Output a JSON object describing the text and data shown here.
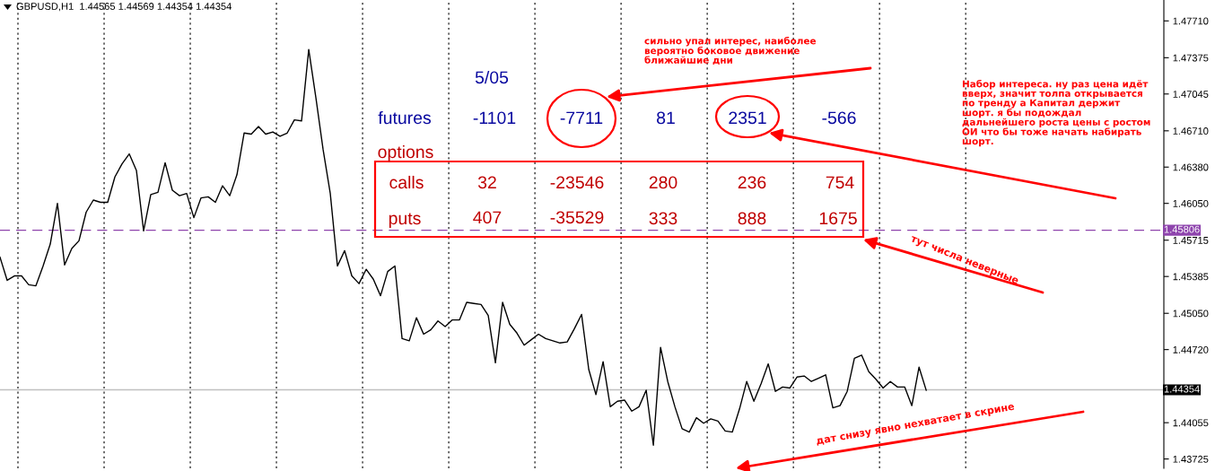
{
  "chart_data": {
    "type": "line",
    "categories": [
      null,
      null,
      null,
      null,
      null,
      null,
      null,
      null,
      null,
      null,
      null,
      null,
      null,
      null,
      null,
      null,
      null,
      null,
      null,
      null,
      null,
      null,
      null,
      null,
      null,
      null,
      null,
      null,
      null,
      null,
      null,
      null,
      null,
      null,
      null,
      null,
      null,
      null,
      null,
      null,
      null,
      null,
      null,
      null,
      null,
      null,
      null,
      null,
      null,
      null,
      null,
      null,
      null,
      null,
      null,
      null,
      null,
      null,
      null,
      null,
      null,
      null,
      null,
      null,
      null,
      null,
      null,
      null,
      null,
      null,
      null,
      null,
      null,
      null,
      null,
      null,
      null,
      null,
      null,
      null,
      null,
      null,
      null,
      null,
      null,
      null,
      null,
      null,
      null,
      null,
      null,
      null,
      null,
      null,
      null,
      null,
      null,
      null,
      null,
      null,
      null,
      null,
      null,
      null,
      null,
      null,
      null,
      null,
      null,
      null,
      null,
      null,
      null,
      null,
      null,
      null,
      null,
      null,
      null,
      null,
      null,
      null,
      null,
      null,
      null,
      null,
      null,
      null,
      null,
      null,
      null,
      null,
      null,
      null,
      null,
      null,
      null,
      null,
      null,
      null,
      null,
      null,
      null,
      null,
      null,
      null,
      null,
      null,
      null,
      null,
      null,
      null,
      null,
      null,
      null,
      null,
      null,
      null,
      null,
      null,
      null,
      null,
      null
    ],
    "series": [
      {
        "color": "#000000",
        "values": [
          1.4556,
          1.4535,
          1.4539,
          1.4539,
          1.4531,
          1.453,
          1.4548,
          1.4568,
          1.4605,
          1.4549,
          1.4564,
          1.4571,
          1.4597,
          1.4608,
          1.4606,
          1.4606,
          1.4629,
          1.4641,
          1.465,
          1.4635,
          1.458,
          1.4613,
          1.4615,
          1.4642,
          1.4617,
          1.4612,
          1.4614,
          1.4592,
          1.461,
          1.4611,
          1.4606,
          1.4621,
          1.4612,
          1.4631,
          1.4669,
          1.4668,
          1.4675,
          1.4668,
          1.467,
          1.4666,
          1.4669,
          1.4681,
          1.468,
          1.4745,
          1.4701,
          1.4654,
          1.4614,
          1.4548,
          1.4562,
          1.4539,
          1.4532,
          1.4545,
          1.4536,
          1.4521,
          1.4543,
          1.4548,
          1.4482,
          1.448,
          1.4501,
          1.4486,
          1.449,
          1.4498,
          1.4493,
          1.4499,
          1.4499,
          1.4515,
          1.4514,
          1.4513,
          1.4503,
          1.446,
          1.4515,
          1.4495,
          1.4487,
          1.4476,
          1.4481,
          1.4486,
          1.4482,
          1.448,
          1.4478,
          1.4479,
          1.4491,
          1.4504,
          1.4454,
          1.4431,
          1.4461,
          1.442,
          1.4425,
          1.4426,
          1.4416,
          1.442,
          1.4435,
          1.4385,
          1.4474,
          1.4443,
          1.442,
          1.44,
          1.4397,
          1.441,
          1.4405,
          1.4409,
          1.4407,
          1.4398,
          1.4397,
          1.4418,
          1.4443,
          1.4425,
          1.4441,
          1.4459,
          1.4434,
          1.4438,
          1.4437,
          1.4447,
          1.4448,
          1.4443,
          1.4446,
          1.4449,
          1.4419,
          1.4421,
          1.4434,
          1.4464,
          1.4467,
          1.4452,
          1.4445,
          1.4437,
          1.4443,
          1.4438,
          1.4438,
          1.4421,
          1.4456,
          1.4435,
          null,
          null,
          null,
          null,
          null,
          null,
          null,
          null,
          null,
          null,
          null,
          null,
          null,
          null,
          null,
          null,
          null,
          null,
          null,
          null,
          null,
          null,
          null,
          null,
          null,
          null,
          null,
          null,
          null,
          null,
          null,
          null,
          null
        ]
      }
    ],
    "ylim": [
      1.4364,
      1.479
    ],
    "yticks": [
      {
        "value": 1.4771,
        "label": "1.47710"
      },
      {
        "value": 1.47375,
        "label": "1.47375"
      },
      {
        "value": 1.47045,
        "label": "1.47045"
      },
      {
        "value": 1.4671,
        "label": "1.46710"
      },
      {
        "value": 1.4638,
        "label": "1.46380"
      },
      {
        "value": 1.4605,
        "label": "1.46050"
      },
      {
        "value": 1.45715,
        "label": "1.45715"
      },
      {
        "value": 1.45385,
        "label": "1.45385"
      },
      {
        "value": 1.4505,
        "label": "1.45050"
      },
      {
        "value": 1.4472,
        "label": "1.44720"
      },
      {
        "value": 1.44055,
        "label": "1.44055"
      },
      {
        "value": 1.43725,
        "label": "1.43725"
      }
    ],
    "grid": "x",
    "ref_lines": [
      {
        "axis": "y",
        "value": 1.45806,
        "label": "1.45806",
        "color": "#8e44ad",
        "line_style": "dashed"
      },
      {
        "axis": "y",
        "value": 1.44354,
        "label": "1.44354",
        "color": "#c0c0c0",
        "line_style": "solid"
      }
    ],
    "annotations": [
      "GBPUSD,H1  1.44565 1.44569 1.44354 1.44354",
      "5/05",
      "futures",
      "-1101",
      "-7711",
      "81",
      "2351",
      "-566",
      "options",
      "calls",
      "32",
      "-23546",
      "280",
      "236",
      "754",
      "puts",
      "407",
      "-35529",
      "333",
      "888",
      "1675",
      "сильно упал интерес, наиболее\nвероятно боковое движение\nближайшие дни",
      "Набор интереса. ну раз цена идёт\nвверх, значит толпа открывается\nпо тренду а Капитал держит\nшорт. я бы подождал\nдальнейшего роста цены с ростом\nОИ что бы тоже начать набирать\nшорт.",
      "тут числа неверные",
      "дат снизу явно нехватает в скрине"
    ]
  }
}
